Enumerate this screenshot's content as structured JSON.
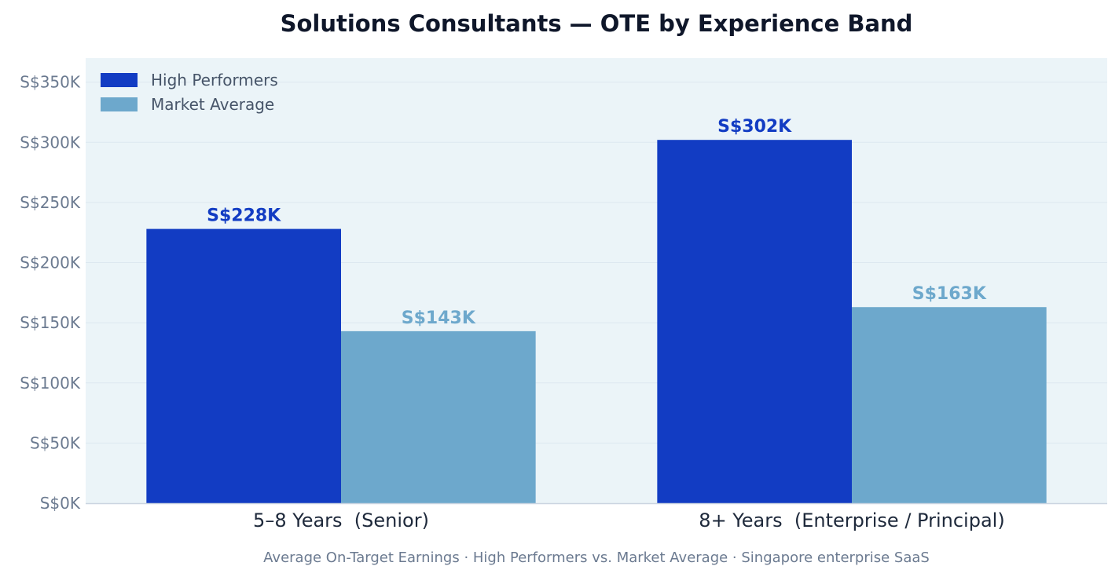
{
  "chart_data": {
    "type": "bar",
    "title": "Solutions Consultants — OTE by Experience Band",
    "subtitle": "Average On-Target Earnings · High Performers vs. Market Average · Singapore enterprise SaaS",
    "xlabel": "",
    "ylabel": "",
    "categories": [
      "5–8 Years  (Senior)",
      "8+ Years  (Enterprise / Principal)"
    ],
    "series": [
      {
        "name": "High Performers",
        "color": "#123cc3",
        "values": [
          228,
          302
        ],
        "labels": [
          "S$228K",
          "S$302K"
        ]
      },
      {
        "name": "Market Average",
        "color": "#6da8cc",
        "values": [
          143,
          163
        ],
        "labels": [
          "S$143K",
          "S$163K"
        ]
      }
    ],
    "ylim": [
      0,
      370
    ],
    "y_ticks": [
      {
        "value": 0,
        "label": "S$0K"
      },
      {
        "value": 50,
        "label": "S$50K"
      },
      {
        "value": 100,
        "label": "S$100K"
      },
      {
        "value": 150,
        "label": "S$150K"
      },
      {
        "value": 200,
        "label": "S$200K"
      },
      {
        "value": 250,
        "label": "S$250K"
      },
      {
        "value": 300,
        "label": "S$300K"
      },
      {
        "value": 350,
        "label": "S$350K"
      }
    ],
    "legend_position": "top-left",
    "grid": true,
    "colors": {
      "plot_background": "#ebf4f8",
      "grid": "#dde8f0",
      "axis": "#cbd5e1"
    }
  }
}
